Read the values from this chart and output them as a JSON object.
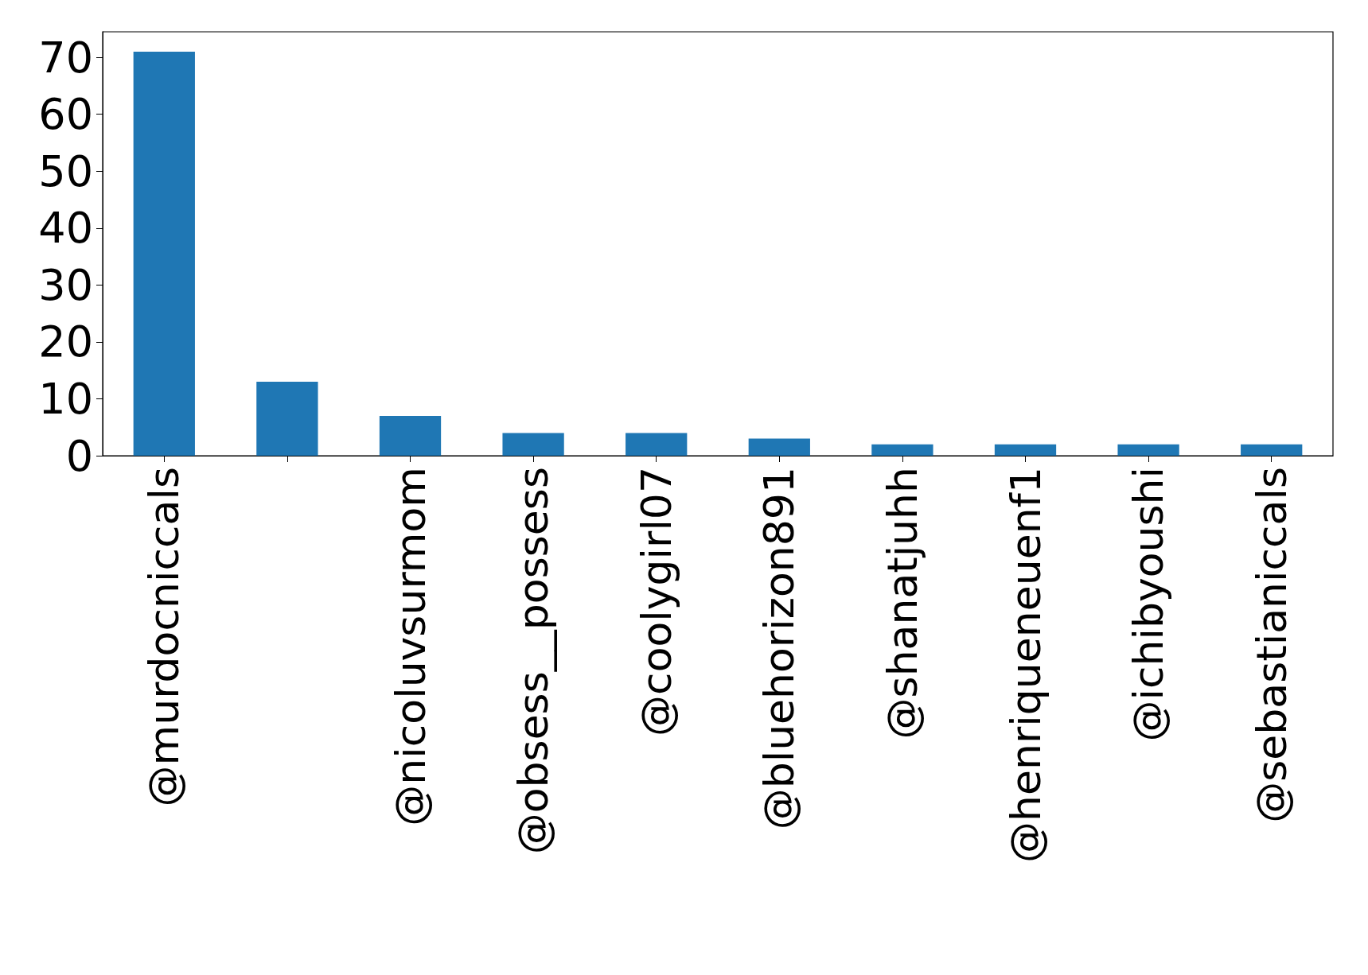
{
  "chart_data": {
    "type": "bar",
    "categories": [
      "@murdocniccals",
      null,
      "@nicoluvsurmom",
      "@obsess__possess",
      "@coolygirl07",
      "@bluehorizon891",
      "@shanatjuhh",
      "@henriqueneuenf1",
      "@ichibyoushi",
      "@sebastianiccals"
    ],
    "values": [
      71,
      13,
      7,
      4,
      4,
      3,
      2,
      2,
      2,
      2
    ],
    "color": "#1f77b4",
    "ylim": [
      0,
      74.5
    ],
    "yticks": [
      0,
      10,
      20,
      30,
      40,
      50,
      60,
      70
    ],
    "grid": false
  }
}
